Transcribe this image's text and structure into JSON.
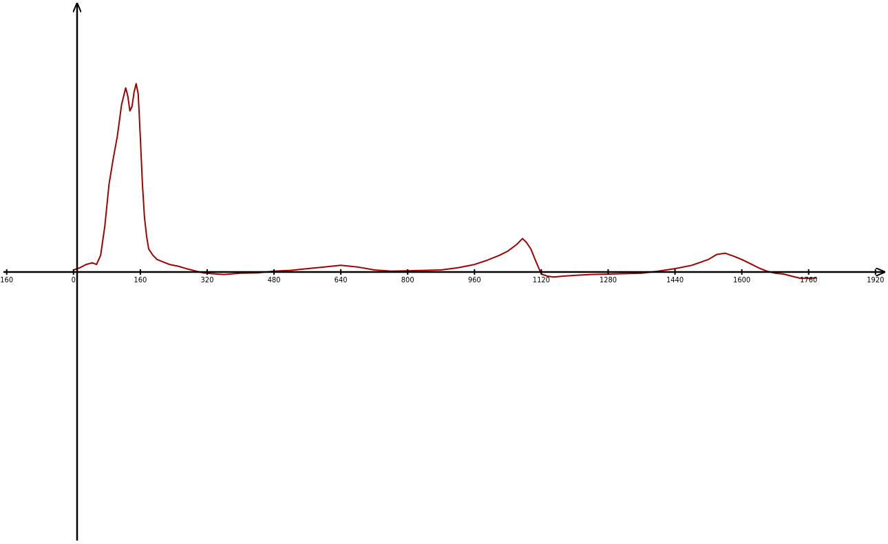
{
  "colors": {
    "axis": "#000000",
    "series": "#a00000",
    "background": "#ffffff"
  },
  "chart_data": {
    "type": "line",
    "title": "",
    "xlabel": "",
    "ylabel": "",
    "grid": false,
    "xlim": [
      -176,
      1950
    ],
    "ylim": [
      -650,
      650
    ],
    "x_ticks": [
      {
        "value": -160,
        "label": "160"
      },
      {
        "value": 0,
        "label": "0"
      },
      {
        "value": 160,
        "label": "160"
      },
      {
        "value": 320,
        "label": "320"
      },
      {
        "value": 480,
        "label": "480"
      },
      {
        "value": 640,
        "label": "640"
      },
      {
        "value": 800,
        "label": "800"
      },
      {
        "value": 960,
        "label": "960"
      },
      {
        "value": 1120,
        "label": "1120"
      },
      {
        "value": 1280,
        "label": "1280"
      },
      {
        "value": 1440,
        "label": "1440"
      },
      {
        "value": 1600,
        "label": "1600"
      },
      {
        "value": 1760,
        "label": "1760"
      },
      {
        "value": 1920,
        "label": "1920"
      }
    ],
    "series": [
      {
        "color": "#a00000",
        "x": [
          0,
          15,
          30,
          45,
          55,
          65,
          75,
          85,
          95,
          105,
          115,
          125,
          130,
          135,
          140,
          145,
          150,
          155,
          160,
          165,
          170,
          175,
          180,
          190,
          200,
          215,
          230,
          250,
          270,
          290,
          310,
          330,
          360,
          400,
          440,
          480,
          520,
          560,
          600,
          640,
          680,
          720,
          760,
          800,
          840,
          880,
          920,
          960,
          990,
          1020,
          1040,
          1060,
          1075,
          1085,
          1095,
          1105,
          1120,
          1135,
          1150,
          1170,
          1200,
          1240,
          1280,
          1320,
          1360,
          1400,
          1440,
          1480,
          1520,
          1540,
          1560,
          1580,
          1600,
          1620,
          1640,
          1660,
          1680,
          1700,
          1720,
          1740,
          1760,
          1780
        ],
        "y": [
          5,
          10,
          18,
          22,
          18,
          40,
          110,
          210,
          270,
          325,
          400,
          440,
          420,
          385,
          395,
          430,
          450,
          425,
          320,
          210,
          130,
          85,
          55,
          40,
          30,
          24,
          18,
          14,
          8,
          3,
          -2,
          -4,
          -6,
          -3,
          -2,
          2,
          4,
          8,
          12,
          16,
          12,
          5,
          2,
          3,
          4,
          5,
          10,
          18,
          28,
          40,
          50,
          65,
          80,
          70,
          55,
          30,
          -5,
          -10,
          -12,
          -10,
          -8,
          -6,
          -5,
          -4,
          -3,
          2,
          8,
          16,
          30,
          42,
          45,
          38,
          30,
          20,
          10,
          2,
          -3,
          -5,
          -10,
          -15,
          -15,
          -14
        ]
      }
    ]
  }
}
